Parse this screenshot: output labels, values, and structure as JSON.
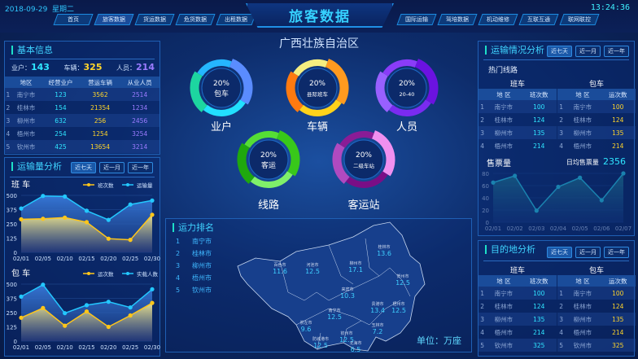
{
  "header": {
    "date": "2018-09-29",
    "weekday": "星期二",
    "title": "旅客数据",
    "time": "13:24:36",
    "nav_left": [
      "首页",
      "旅客数据",
      "货运数据",
      "危货数据",
      "出租数据"
    ],
    "nav_right": [
      "国际运输",
      "驾培数据",
      "机动维修",
      "互联互通",
      "联网联控"
    ]
  },
  "region_title": "广西壮族自治区",
  "basic": {
    "title": "基本信息",
    "stats": [
      {
        "label": "业户：",
        "value": "143",
        "color": "#2fe6ff"
      },
      {
        "label": "车辆：",
        "value": "325",
        "color": "#ffd52a"
      },
      {
        "label": "人员：",
        "value": "214",
        "color": "#a07cff"
      }
    ],
    "headers": [
      "",
      "地区",
      "经营业户",
      "营运车辆",
      "从业人员"
    ],
    "rows": [
      [
        "1",
        "南宁市",
        "123",
        "3562",
        "2514"
      ],
      [
        "2",
        "桂林市",
        "154",
        "21354",
        "1234"
      ],
      [
        "3",
        "柳州市",
        "632",
        "256",
        "2456"
      ],
      [
        "4",
        "梧州市",
        "254",
        "1254",
        "3254"
      ],
      [
        "5",
        "钦州市",
        "425",
        "13654",
        "3214"
      ]
    ]
  },
  "range_buttons": [
    "近七天",
    "近一月",
    "近一年"
  ],
  "volume": {
    "title": "运输量分析",
    "charts": [
      {
        "title": "班 车",
        "type": "area",
        "categories": [
          "02/01",
          "02/05",
          "02/10",
          "02/15",
          "02/20",
          "02/25",
          "02/30"
        ],
        "yticks": [
          0,
          125,
          250,
          375,
          500
        ],
        "ylim": [
          0,
          500
        ],
        "series": [
          {
            "name": "班次数",
            "color": "#ffc61a",
            "values": [
              290,
              295,
              305,
              265,
              120,
              110,
              330
            ]
          },
          {
            "name": "运输量",
            "color": "#23c8ff",
            "values": [
              385,
              495,
              490,
              365,
              285,
              420,
              455
            ]
          }
        ]
      },
      {
        "title": "包 车",
        "type": "area",
        "categories": [
          "02/01",
          "02/05",
          "02/10",
          "02/15",
          "02/20",
          "02/25",
          "02/30"
        ],
        "yticks": [
          0,
          125,
          250,
          375,
          500
        ],
        "ylim": [
          0,
          500
        ],
        "series": [
          {
            "name": "运次数",
            "color": "#ffc61a",
            "values": [
              205,
              290,
              135,
              260,
              125,
              225,
              335
            ]
          },
          {
            "name": "实载人数",
            "color": "#23c8ff",
            "values": [
              390,
              495,
              245,
              315,
              345,
              295,
              455
            ]
          }
        ]
      }
    ]
  },
  "donuts": [
    {
      "percent": "20%",
      "sub": "包车",
      "label": "业户",
      "colors": [
        "#5a8cff",
        "#22e0ff",
        "#1dd6a0",
        "#25b6ff"
      ]
    },
    {
      "percent": "20%",
      "sub": "县际班车",
      "label": "车辆",
      "colors": [
        "#ff9a1f",
        "#ffd21a",
        "#ff7a10",
        "#f5ee80"
      ]
    },
    {
      "percent": "20%",
      "sub": "20-40",
      "label": "人员",
      "colors": [
        "#6b12e0",
        "#7a2bf0",
        "#9860ff",
        "#8a3cf8"
      ]
    },
    {
      "percent": "20%",
      "sub": "客运",
      "label": "线路",
      "colors": [
        "#38c81a",
        "#7ff06a",
        "#1fa80e",
        "#55de35"
      ]
    },
    {
      "percent": "20%",
      "sub": "二级车站",
      "label": "客运站",
      "colors": [
        "#f090f0",
        "#7a0e86",
        "#b04ac0",
        "#8a1c96"
      ]
    }
  ],
  "capacity": {
    "title": "运力排名",
    "ranks": [
      [
        "1",
        "南宁市"
      ],
      [
        "2",
        "桂林市"
      ],
      [
        "3",
        "柳州市"
      ],
      [
        "4",
        "梧州市"
      ],
      [
        "5",
        "钦州市"
      ]
    ],
    "unit": "单位：万座",
    "cities": [
      {
        "name": "百色市",
        "value": "11.6"
      },
      {
        "name": "河池市",
        "value": "12.5"
      },
      {
        "name": "柳州市",
        "value": "17.1"
      },
      {
        "name": "桂林市",
        "value": "13.6"
      },
      {
        "name": "贺州市",
        "value": "12.5"
      },
      {
        "name": "来宾市",
        "value": "10.3"
      },
      {
        "name": "贵港市",
        "value": "13.4"
      },
      {
        "name": "梧州市",
        "value": "12.5"
      },
      {
        "name": "南宁市",
        "value": "12.5"
      },
      {
        "name": "崇左市",
        "value": "9.6"
      },
      {
        "name": "玉林市",
        "value": "7.2"
      },
      {
        "name": "钦州市",
        "value": "12.5"
      },
      {
        "name": "防城港市",
        "value": "12.5"
      },
      {
        "name": "北海市",
        "value": "6.5"
      }
    ]
  },
  "transport": {
    "title": "运输情况分析",
    "hot": "热门线路",
    "bus": {
      "title": "班车",
      "headers": [
        "",
        "地 区",
        "班次数"
      ],
      "rows": [
        [
          "1",
          "南宁市",
          "100"
        ],
        [
          "2",
          "桂林市",
          "124"
        ],
        [
          "3",
          "柳州市",
          "135"
        ],
        [
          "4",
          "梧州市",
          "214"
        ]
      ]
    },
    "charter": {
      "title": "包车",
      "headers": [
        "",
        "地 区",
        "运次数"
      ],
      "rows": [
        [
          "1",
          "南宁市",
          "100"
        ],
        [
          "2",
          "桂林市",
          "124"
        ],
        [
          "3",
          "柳州市",
          "135"
        ],
        [
          "4",
          "梧州市",
          "214"
        ]
      ]
    },
    "tickets": {
      "title": "售票量",
      "avg_label": "日均售票量",
      "avg": "2356"
    }
  },
  "chart_data": [
    {
      "type": "area",
      "title": "班 车",
      "categories": [
        "02/01",
        "02/05",
        "02/10",
        "02/15",
        "02/20",
        "02/25",
        "02/30"
      ],
      "ylim": [
        0,
        500
      ],
      "series": [
        {
          "name": "班次数",
          "values": [
            290,
            295,
            305,
            265,
            120,
            110,
            330
          ]
        },
        {
          "name": "运输量",
          "values": [
            385,
            495,
            490,
            365,
            285,
            420,
            455
          ]
        }
      ]
    },
    {
      "type": "area",
      "title": "包 车",
      "categories": [
        "02/01",
        "02/05",
        "02/10",
        "02/15",
        "02/20",
        "02/25",
        "02/30"
      ],
      "ylim": [
        0,
        500
      ],
      "series": [
        {
          "name": "运次数",
          "values": [
            205,
            290,
            135,
            260,
            125,
            225,
            335
          ]
        },
        {
          "name": "实载人数",
          "values": [
            390,
            495,
            245,
            315,
            345,
            295,
            455
          ]
        }
      ]
    },
    {
      "type": "area",
      "title": "售票量",
      "categories": [
        "02/01",
        "02/02",
        "02/03",
        "02/04",
        "02/05",
        "02/06",
        "02/07"
      ],
      "ylim": [
        0,
        80
      ],
      "yticks": [
        0,
        20,
        40,
        60,
        80
      ],
      "series": [
        {
          "values": [
            65,
            76,
            19,
            58,
            73,
            36,
            80
          ]
        }
      ]
    }
  ],
  "destination": {
    "title": "目的地分析",
    "bus": {
      "title": "班车",
      "headers": [
        "",
        "地 区",
        "班次数"
      ],
      "rows": [
        [
          "1",
          "南宁市",
          "100"
        ],
        [
          "2",
          "桂林市",
          "124"
        ],
        [
          "3",
          "柳州市",
          "135"
        ],
        [
          "4",
          "梧州市",
          "214"
        ],
        [
          "5",
          "钦州市",
          "325"
        ]
      ]
    },
    "charter": {
      "title": "包车",
      "headers": [
        "",
        "地 区",
        "运次数"
      ],
      "rows": [
        [
          "1",
          "南宁市",
          "100"
        ],
        [
          "2",
          "桂林市",
          "124"
        ],
        [
          "3",
          "柳州市",
          "135"
        ],
        [
          "4",
          "梧州市",
          "214"
        ],
        [
          "5",
          "钦州市",
          "325"
        ]
      ]
    }
  }
}
